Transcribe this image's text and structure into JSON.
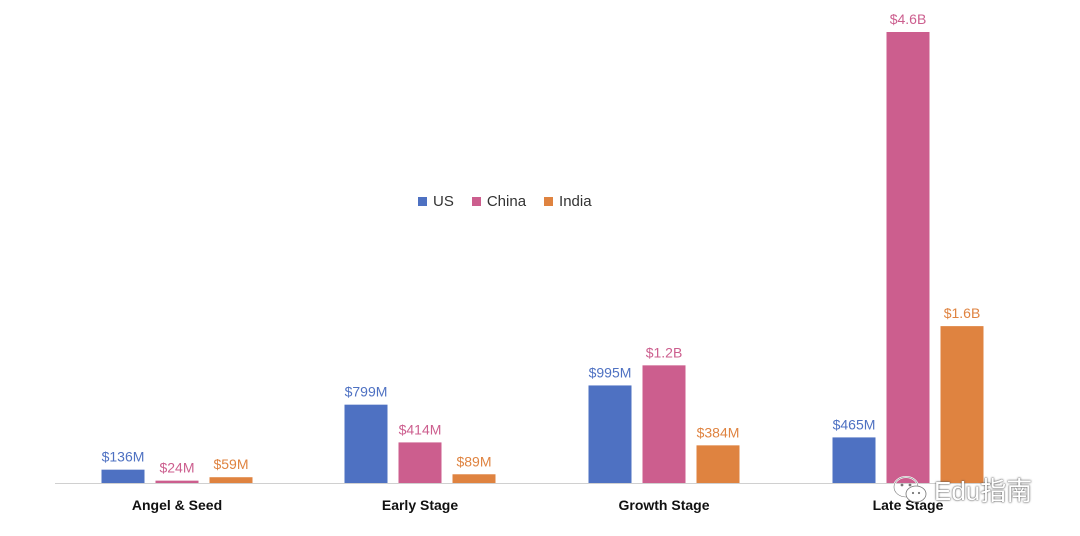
{
  "chart_data": {
    "type": "bar",
    "categories": [
      "Angel & Seed",
      "Early Stage",
      "Growth Stage",
      "Late Stage"
    ],
    "series": [
      {
        "name": "US",
        "color": "#4e71c2",
        "values": [
          136,
          799,
          995,
          465
        ],
        "labels": [
          "$136M",
          "$799M",
          "$995M",
          "$465M"
        ]
      },
      {
        "name": "China",
        "color": "#cc5e8e",
        "values": [
          24,
          414,
          1200,
          4600
        ],
        "labels": [
          "$24M",
          "$414M",
          "$1.2B",
          "$4.6B"
        ]
      },
      {
        "name": "India",
        "color": "#df8340",
        "values": [
          59,
          89,
          384,
          1600
        ],
        "labels": [
          "$59M",
          "$89M",
          "$384M",
          "$1.6B"
        ]
      }
    ],
    "unit": "millions USD",
    "ylim": [
      0,
      4600
    ],
    "title": "",
    "xlabel": "",
    "ylabel": "",
    "grid": false,
    "legend_position": "center"
  },
  "watermark": {
    "icon": "wechat-icon",
    "text": "Edu指南"
  }
}
